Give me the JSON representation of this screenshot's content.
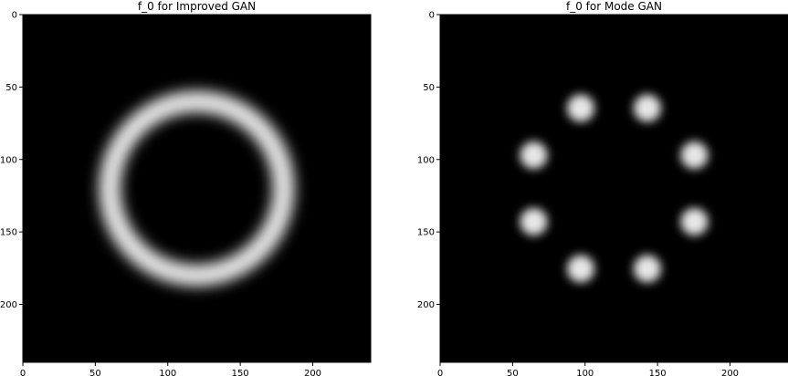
{
  "chart_data": [
    {
      "type": "heatmap",
      "title": "f_0 for Improved GAN",
      "colormap": "gray",
      "xlim": [
        0,
        240
      ],
      "ylim": [
        240,
        0
      ],
      "x_ticks": [
        0,
        50,
        100,
        150,
        200
      ],
      "y_ticks": [
        0,
        50,
        100,
        150,
        200
      ],
      "x_tick_labels": [
        "0",
        "50",
        "100",
        "150",
        "200"
      ],
      "y_tick_labels": [
        "0",
        "50",
        "100",
        "150",
        "200"
      ],
      "pattern": {
        "shape": "continuous-ring",
        "center": [
          120,
          120
        ],
        "radius": 60,
        "modes": 0,
        "intensity_peak": 0.92
      }
    },
    {
      "type": "heatmap",
      "title": "f_0 for Mode GAN",
      "colormap": "gray",
      "xlim": [
        0,
        240
      ],
      "ylim": [
        240,
        0
      ],
      "x_ticks": [
        0,
        50,
        100,
        150,
        200
      ],
      "y_ticks": [
        0,
        50,
        100,
        150,
        200
      ],
      "x_tick_labels": [
        "0",
        "50",
        "100",
        "150",
        "200"
      ],
      "y_tick_labels": [
        "0",
        "50",
        "100",
        "150",
        "200"
      ],
      "pattern": {
        "shape": "ring-of-gaussians",
        "center": [
          120,
          120
        ],
        "radius": 60,
        "modes": 8,
        "intensity_peak": 0.9
      }
    }
  ]
}
